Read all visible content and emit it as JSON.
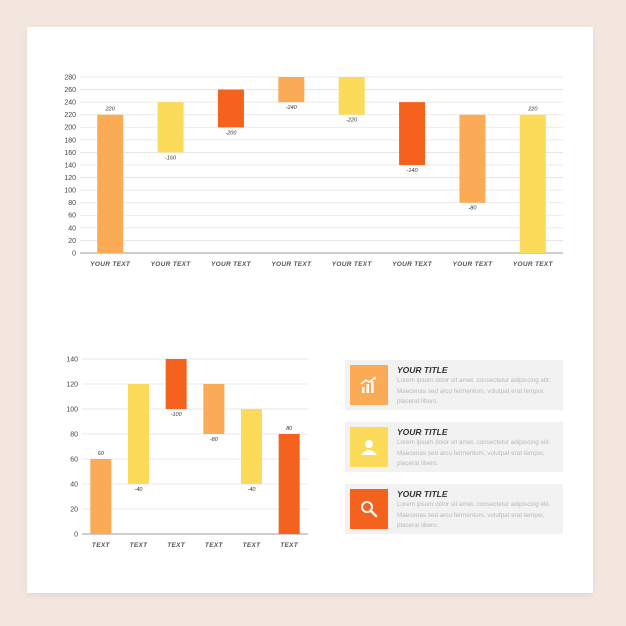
{
  "chart_data": [
    {
      "type": "waterfall",
      "ylim": [
        0,
        280
      ],
      "yticks": [
        0,
        20,
        40,
        60,
        80,
        100,
        120,
        140,
        160,
        180,
        200,
        220,
        240,
        260,
        280
      ],
      "categories": [
        "YOUR TEXT",
        "YOUR TEXT",
        "YOUR TEXT",
        "YOUR TEXT",
        "YOUR TEXT",
        "YOUR TEXT",
        "YOUR TEXT",
        "YOUR TEXT"
      ],
      "bars": [
        {
          "bottom": 0,
          "top": 220,
          "label": "220",
          "color": "#fbab56"
        },
        {
          "bottom": 160,
          "top": 240,
          "label": "-160",
          "color": "#fddb5a"
        },
        {
          "bottom": 200,
          "top": 260,
          "label": "-200",
          "color": "#f4621e"
        },
        {
          "bottom": 240,
          "top": 280,
          "label": "-240",
          "color": "#fbab56"
        },
        {
          "bottom": 220,
          "top": 280,
          "label": "-220",
          "color": "#fddb5a"
        },
        {
          "bottom": 140,
          "top": 240,
          "label": "-140",
          "color": "#f4621e"
        },
        {
          "bottom": 80,
          "top": 220,
          "label": "-80",
          "color": "#fbab56"
        },
        {
          "bottom": 0,
          "top": 220,
          "label": "220",
          "color": "#fddb5a"
        }
      ],
      "grid": true
    },
    {
      "type": "waterfall",
      "ylim": [
        0,
        140
      ],
      "yticks": [
        0,
        20,
        40,
        60,
        80,
        100,
        120,
        140
      ],
      "categories": [
        "TEXT",
        "TEXT",
        "TEXT",
        "TEXT",
        "TEXT",
        "TEXT"
      ],
      "bars": [
        {
          "bottom": 0,
          "top": 60,
          "label": "60",
          "color": "#fbab56"
        },
        {
          "bottom": 40,
          "top": 120,
          "label": "-40",
          "color": "#fddb5a"
        },
        {
          "bottom": 100,
          "top": 140,
          "label": "-100",
          "color": "#f4621e"
        },
        {
          "bottom": 80,
          "top": 120,
          "label": "-80",
          "color": "#fbab56"
        },
        {
          "bottom": 40,
          "top": 100,
          "label": "-40",
          "color": "#fddb5a"
        },
        {
          "bottom": 0,
          "top": 80,
          "label": "80",
          "color": "#f4621e"
        }
      ],
      "grid": true
    }
  ],
  "info": [
    {
      "title": "YOUR TITLE",
      "text": "Lorem ipsum dolor sit amet, consectetur adipiscing elit. Maecenas sed arcu fermentum, volutpat erat tempor, placerat libero.",
      "icon": "growth-chart-icon",
      "color": "#fbab56"
    },
    {
      "title": "YOUR TITLE",
      "text": "Lorem ipsum dolor sit amet, consectetur adipiscing elit. Maecenas sed arcu fermentum, volutpat erat tempor, placerat libero.",
      "icon": "user-icon",
      "color": "#fddb5a"
    },
    {
      "title": "YOUR TITLE",
      "text": "Lorem ipsum dolor sit amet, consectetur adipiscing elit. Maecenas sed arcu fermentum, volutpat erat tempor, placerat libero.",
      "icon": "search-icon",
      "color": "#f4621e"
    }
  ]
}
